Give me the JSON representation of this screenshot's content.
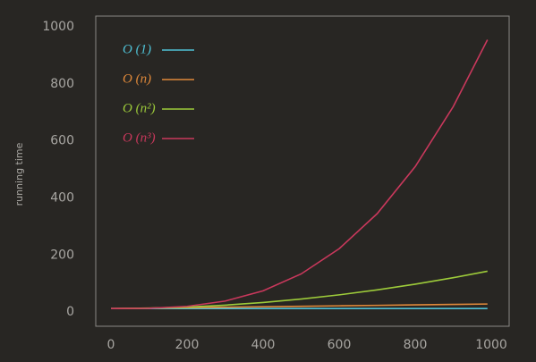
{
  "chart_data": {
    "type": "line",
    "y_label": "running time",
    "x": [
      0,
      100,
      200,
      300,
      400,
      500,
      600,
      700,
      800,
      900,
      990
    ],
    "xlim": [
      -40,
      1047
    ],
    "ylim": [
      -50,
      1038
    ],
    "xticks": [
      0,
      200,
      400,
      600,
      800,
      1000
    ],
    "yticks": [
      0,
      200,
      400,
      600,
      800,
      1000
    ],
    "grid": false,
    "legend": "upper left",
    "series": [
      {
        "name": "O (1)",
        "color": "#4fc0d4",
        "values": [
          12,
          12,
          12,
          12,
          12,
          12,
          12,
          12,
          12,
          12,
          12
        ]
      },
      {
        "name": "O (n)",
        "color": "#e0893a",
        "values": [
          12,
          13.6,
          15.2,
          16.8,
          18.5,
          20.1,
          21.7,
          23.3,
          24.9,
          26.5,
          28
        ]
      },
      {
        "name": "O (n²)",
        "color": "#9dcb3a",
        "values": [
          12,
          13.3,
          17.3,
          24,
          33.4,
          45.4,
          60.1,
          77.5,
          97.6,
          120.3,
          143
        ]
      },
      {
        "name": "O (n³)",
        "color": "#c9385c",
        "values": [
          12,
          13,
          19.8,
          38.2,
          74.2,
          133.5,
          222,
          345,
          510,
          720.5,
          955
        ]
      }
    ]
  }
}
